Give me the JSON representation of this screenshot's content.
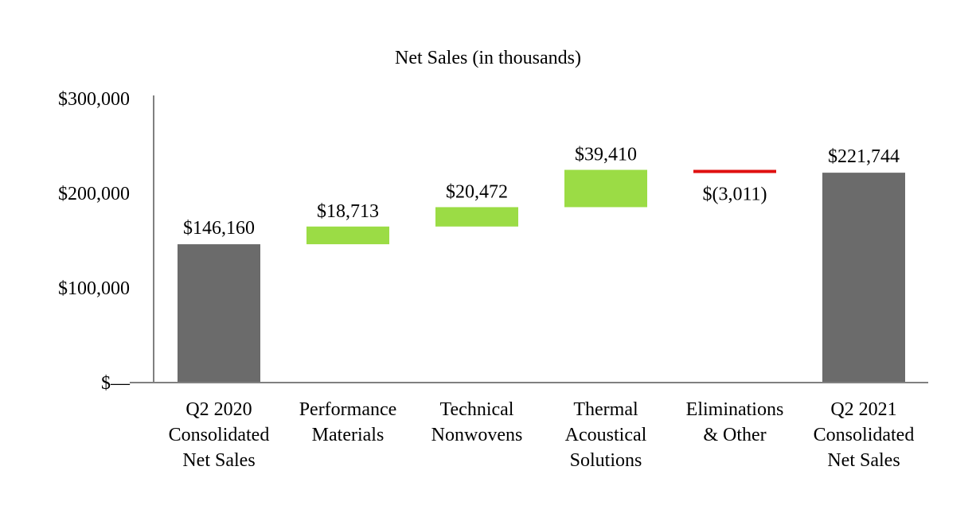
{
  "chart_data": {
    "type": "bar",
    "subtype": "waterfall",
    "title": "Net Sales (in thousands)",
    "xlabel": "",
    "ylabel": "",
    "ylim": [
      0,
      300000
    ],
    "yticks": [
      {
        "value": 0,
        "label": "$—"
      },
      {
        "value": 100000,
        "label": "$100,000"
      },
      {
        "value": 200000,
        "label": "$200,000"
      },
      {
        "value": 300000,
        "label": "$300,000"
      }
    ],
    "grid": false,
    "legend": "none",
    "categories": [
      [
        "Q2 2020",
        "Consolidated",
        "Net Sales"
      ],
      [
        "Performance",
        "Materials"
      ],
      [
        "Technical",
        "Nonwovens"
      ],
      [
        "Thermal",
        "Acoustical",
        "Solutions"
      ],
      [
        "Eliminations",
        "& Other"
      ],
      [
        "Q2 2021",
        "Consolidated",
        "Net Sales"
      ]
    ],
    "values": [
      146160,
      18713,
      20472,
      39410,
      -3011,
      221744
    ],
    "kinds": [
      "total",
      "increase",
      "increase",
      "increase",
      "decrease",
      "total"
    ],
    "data_labels": [
      "$146,160",
      "$18,713",
      "$20,472",
      "$39,410",
      "$(3,011)",
      "$221,744"
    ],
    "colors": {
      "total": "#6b6b6b",
      "increase": "#9bdc45",
      "decrease": "#e01010",
      "axis": "#808080"
    }
  }
}
